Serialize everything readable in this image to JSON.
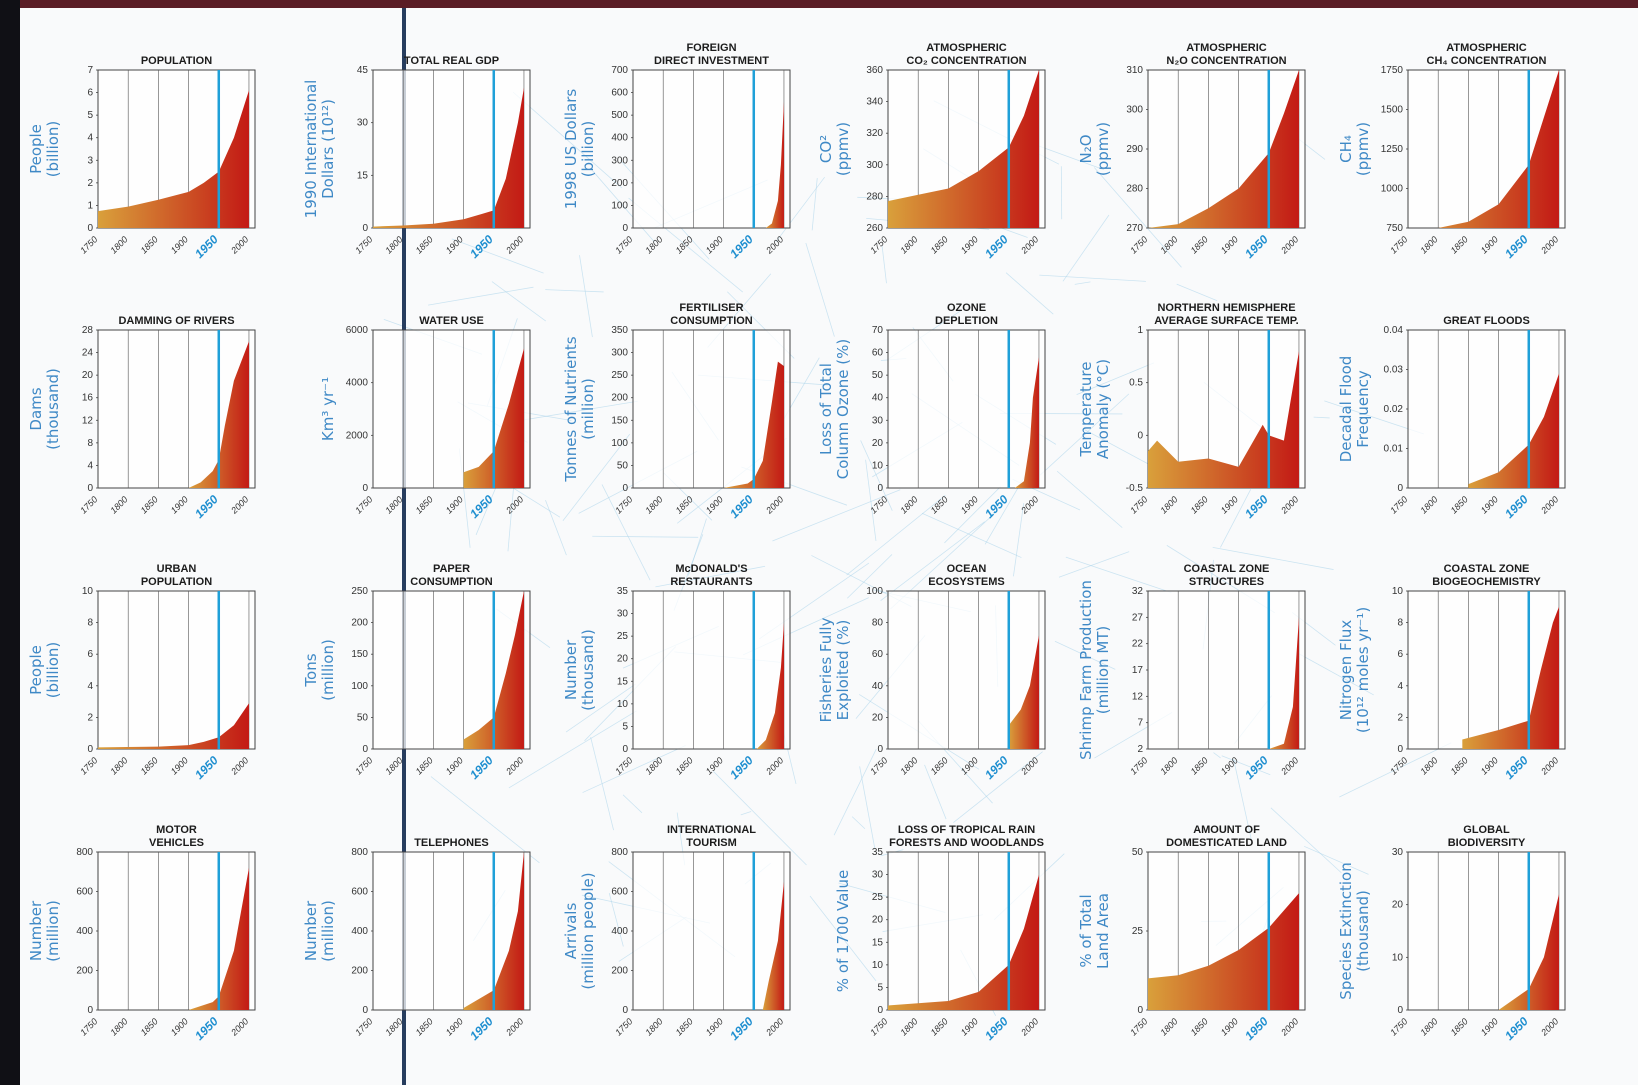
{
  "charts": [
    {
      "id": "population",
      "title": [
        "POPULATION"
      ],
      "ylabel": [
        "People",
        "(billion)"
      ],
      "yticks": [
        "0",
        "1",
        "2",
        "3",
        "4",
        "5",
        "6",
        "7"
      ],
      "ylim": [
        0,
        7
      ],
      "xticks": [
        "1750",
        "1800",
        "1850",
        "1900",
        "1950",
        "2000"
      ],
      "highlight_x": "1950",
      "series": [
        [
          1750,
          0.75
        ],
        [
          1800,
          0.95
        ],
        [
          1850,
          1.25
        ],
        [
          1900,
          1.6
        ],
        [
          1925,
          2.0
        ],
        [
          1950,
          2.5
        ],
        [
          1975,
          4.0
        ],
        [
          2000,
          6.1
        ]
      ]
    },
    {
      "id": "real-gdp",
      "title": [
        "TOTAL REAL GDP"
      ],
      "ylabel": [
        "1990 International",
        "Dollars (10¹²)"
      ],
      "yticks": [
        "0",
        "15",
        "30",
        "45"
      ],
      "ylim": [
        0,
        45
      ],
      "xticks": [
        "1750",
        "1800",
        "1850",
        "1900",
        "1950",
        "2000"
      ],
      "highlight_x": "1950",
      "series": [
        [
          1750,
          0.4
        ],
        [
          1800,
          0.7
        ],
        [
          1850,
          1.2
        ],
        [
          1900,
          2.5
        ],
        [
          1930,
          4
        ],
        [
          1950,
          5
        ],
        [
          1970,
          14
        ],
        [
          1990,
          30
        ],
        [
          2000,
          40
        ]
      ]
    },
    {
      "id": "foreign-investment",
      "title": [
        "FOREIGN",
        "DIRECT INVESTMENT"
      ],
      "ylabel": [
        "1998 US Dollars",
        "(billion)"
      ],
      "yticks": [
        "0",
        "100",
        "200",
        "300",
        "400",
        "500",
        "600",
        "700"
      ],
      "ylim": [
        0,
        700
      ],
      "xticks": [
        "1750",
        "1800",
        "1850",
        "1900",
        "1950",
        "2000"
      ],
      "highlight_x": "1950",
      "series": [
        [
          1970,
          0
        ],
        [
          1980,
          20
        ],
        [
          1990,
          120
        ],
        [
          1995,
          280
        ],
        [
          2000,
          560
        ]
      ]
    },
    {
      "id": "co2",
      "title": [
        "ATMOSPHERIC",
        "CO₂ CONCENTRATION"
      ],
      "ylabel": [
        "CO²",
        "(ppmv)"
      ],
      "yticks": [
        "260",
        "280",
        "300",
        "320",
        "340",
        "360"
      ],
      "ylim": [
        260,
        360
      ],
      "xticks": [
        "1750",
        "1800",
        "1850",
        "1900",
        "1950",
        "2000"
      ],
      "highlight_x": "1950",
      "series": [
        [
          1750,
          277
        ],
        [
          1800,
          281
        ],
        [
          1850,
          285
        ],
        [
          1900,
          296
        ],
        [
          1950,
          311
        ],
        [
          1975,
          331
        ],
        [
          2000,
          369
        ]
      ]
    },
    {
      "id": "n2o",
      "title": [
        "ATMOSPHERIC",
        "N₂O CONCENTRATION"
      ],
      "ylabel": [
        "N₂O",
        "(ppmv)"
      ],
      "yticks": [
        "270",
        "280",
        "290",
        "300",
        "310"
      ],
      "ylim": [
        270,
        310
      ],
      "xticks": [
        "1750",
        "1800",
        "1850",
        "1900",
        "1950",
        "2000"
      ],
      "highlight_x": "1950",
      "series": [
        [
          1750,
          270
        ],
        [
          1800,
          271
        ],
        [
          1850,
          275
        ],
        [
          1900,
          280
        ],
        [
          1950,
          289
        ],
        [
          1975,
          299
        ],
        [
          2000,
          316
        ]
      ]
    },
    {
      "id": "ch4",
      "title": [
        "ATMOSPHERIC",
        "CH₄ CONCENTRATION"
      ],
      "ylabel": [
        "CH₄",
        "(ppmv)"
      ],
      "yticks": [
        "750",
        "1000",
        "1250",
        "1500",
        "1750"
      ],
      "ylim": [
        750,
        1750
      ],
      "xticks": [
        "1750",
        "1800",
        "1850",
        "1900",
        "1950",
        "2000"
      ],
      "highlight_x": "1950",
      "series": [
        [
          1750,
          700
        ],
        [
          1800,
          715
        ],
        [
          1850,
          790
        ],
        [
          1900,
          900
        ],
        [
          1950,
          1150
        ],
        [
          1975,
          1450
        ],
        [
          2000,
          1750
        ]
      ]
    },
    {
      "id": "damming",
      "title": [
        "DAMMING OF RIVERS"
      ],
      "ylabel": [
        "Dams",
        "(thousand)"
      ],
      "yticks": [
        "0",
        "4",
        "8",
        "12",
        "16",
        "20",
        "24",
        "28"
      ],
      "ylim": [
        0,
        28
      ],
      "xticks": [
        "1750",
        "1800",
        "1850",
        "1900",
        "1950",
        "2000"
      ],
      "highlight_x": "1950",
      "series": [
        [
          1900,
          0
        ],
        [
          1920,
          1
        ],
        [
          1940,
          3
        ],
        [
          1950,
          5
        ],
        [
          1960,
          11
        ],
        [
          1975,
          19
        ],
        [
          2000,
          26
        ]
      ]
    },
    {
      "id": "water-use",
      "title": [
        "WATER USE"
      ],
      "ylabel": [
        "Km³ yr⁻¹"
      ],
      "yticks": [
        "0",
        "2000",
        "4000",
        "6000"
      ],
      "ylim": [
        0,
        6000
      ],
      "xticks": [
        "1750",
        "1800",
        "1850",
        "1900",
        "1950",
        "2000"
      ],
      "highlight_x": "1950",
      "series": [
        [
          1900,
          600
        ],
        [
          1925,
          800
        ],
        [
          1950,
          1400
        ],
        [
          1975,
          3200
        ],
        [
          2000,
          5300
        ]
      ]
    },
    {
      "id": "fertiliser",
      "title": [
        "FERTILISER",
        "CONSUMPTION"
      ],
      "ylabel": [
        "Tonnes of Nutrients",
        "(million)"
      ],
      "yticks": [
        "0",
        "50",
        "100",
        "150",
        "200",
        "250",
        "300",
        "350"
      ],
      "ylim": [
        0,
        350
      ],
      "xticks": [
        "1750",
        "1800",
        "1850",
        "1900",
        "1950",
        "2000"
      ],
      "highlight_x": "1950",
      "series": [
        [
          1900,
          0
        ],
        [
          1940,
          10
        ],
        [
          1950,
          20
        ],
        [
          1965,
          60
        ],
        [
          1980,
          190
        ],
        [
          1990,
          280
        ],
        [
          2000,
          270
        ]
      ]
    },
    {
      "id": "ozone",
      "title": [
        "OZONE",
        "DEPLETION"
      ],
      "ylabel": [
        "Loss of Total",
        "Column Ozone (%)"
      ],
      "yticks": [
        "0",
        "10",
        "20",
        "30",
        "40",
        "50",
        "60",
        "70"
      ],
      "ylim": [
        0,
        70
      ],
      "xticks": [
        "1750",
        "1800",
        "1850",
        "1900",
        "1950",
        "2000"
      ],
      "highlight_x": "1950",
      "series": [
        [
          1960,
          0
        ],
        [
          1975,
          3
        ],
        [
          1985,
          20
        ],
        [
          1990,
          40
        ],
        [
          2000,
          58
        ]
      ]
    },
    {
      "id": "nh-temp",
      "title": [
        "NORTHERN HEMISPHERE",
        "AVERAGE SURFACE TEMP."
      ],
      "ylabel": [
        "Temperature",
        "Anomaly (°C)"
      ],
      "yticks": [
        "-0.5",
        "0",
        "0.5",
        "1"
      ],
      "ylim": [
        -0.5,
        1
      ],
      "xticks": [
        "1750",
        "1800",
        "1850",
        "1900",
        "1950",
        "2000"
      ],
      "highlight_x": "1950",
      "series": [
        [
          1750,
          -0.15
        ],
        [
          1765,
          -0.05
        ],
        [
          1800,
          -0.25
        ],
        [
          1850,
          -0.22
        ],
        [
          1900,
          -0.3
        ],
        [
          1940,
          0.1
        ],
        [
          1950,
          0.0
        ],
        [
          1975,
          -0.05
        ],
        [
          2000,
          0.8
        ]
      ]
    },
    {
      "id": "floods",
      "title": [
        "GREAT FLOODS"
      ],
      "ylabel": [
        "Decadal Flood",
        "Frequency"
      ],
      "yticks": [
        "0",
        "0.01",
        "0.02",
        "0.03",
        "0.04"
      ],
      "ylim": [
        0,
        0.04
      ],
      "xticks": [
        "1750",
        "1800",
        "1850",
        "1900",
        "1950",
        "2000"
      ],
      "highlight_x": "1950",
      "series": [
        [
          1850,
          0.001
        ],
        [
          1900,
          0.004
        ],
        [
          1950,
          0.011
        ],
        [
          1975,
          0.018
        ],
        [
          2000,
          0.029
        ]
      ]
    },
    {
      "id": "urban-pop",
      "title": [
        "URBAN",
        "POPULATION"
      ],
      "ylabel": [
        "People",
        "(billion)"
      ],
      "yticks": [
        "0",
        "2",
        "4",
        "6",
        "8",
        "10"
      ],
      "ylim": [
        0,
        10
      ],
      "xticks": [
        "1750",
        "1800",
        "1850",
        "1900",
        "1950",
        "2000"
      ],
      "highlight_x": "1950",
      "series": [
        [
          1750,
          0.1
        ],
        [
          1850,
          0.15
        ],
        [
          1900,
          0.25
        ],
        [
          1925,
          0.45
        ],
        [
          1950,
          0.75
        ],
        [
          1975,
          1.5
        ],
        [
          2000,
          2.9
        ]
      ]
    },
    {
      "id": "paper",
      "title": [
        "PAPER",
        "CONSUMPTION"
      ],
      "ylabel": [
        "Tons",
        "(million)"
      ],
      "yticks": [
        "0",
        "50",
        "100",
        "150",
        "200",
        "250"
      ],
      "ylim": [
        0,
        250
      ],
      "xticks": [
        "1750",
        "1800",
        "1850",
        "1900",
        "1950",
        "2000"
      ],
      "highlight_x": "1950",
      "series": [
        [
          1900,
          15
        ],
        [
          1925,
          30
        ],
        [
          1950,
          50
        ],
        [
          1970,
          120
        ],
        [
          1985,
          180
        ],
        [
          2000,
          250
        ]
      ]
    },
    {
      "id": "mcdonalds",
      "title": [
        "McDONALD'S",
        "RESTAURANTS"
      ],
      "ylabel": [
        "Number",
        "(thousand)"
      ],
      "yticks": [
        "0",
        "5",
        "10",
        "15",
        "20",
        "25",
        "30",
        "35"
      ],
      "ylim": [
        0,
        35
      ],
      "xticks": [
        "1750",
        "1800",
        "1850",
        "1900",
        "1950",
        "2000"
      ],
      "highlight_x": "1950",
      "series": [
        [
          1955,
          0
        ],
        [
          1970,
          2
        ],
        [
          1985,
          8
        ],
        [
          1995,
          18
        ],
        [
          2000,
          28
        ]
      ]
    },
    {
      "id": "ocean",
      "title": [
        "OCEAN",
        "ECOSYSTEMS"
      ],
      "ylabel": [
        "Fisheries Fully",
        "Exploited (%)"
      ],
      "yticks": [
        "0",
        "20",
        "40",
        "60",
        "80",
        "100"
      ],
      "ylim": [
        0,
        100
      ],
      "xticks": [
        "1750",
        "1800",
        "1850",
        "1900",
        "1950",
        "2000"
      ],
      "highlight_x": "1950",
      "series": [
        [
          1950,
          15
        ],
        [
          1970,
          25
        ],
        [
          1985,
          40
        ],
        [
          2000,
          72
        ]
      ]
    },
    {
      "id": "shrimp",
      "title": [
        "COASTAL ZONE",
        "STRUCTURES"
      ],
      "ylabel": [
        "Shrimp Farm Production",
        "(million MT)"
      ],
      "yticks": [
        "2",
        "7",
        "12",
        "17",
        "22",
        "27",
        "32"
      ],
      "ylim": [
        2,
        32
      ],
      "xticks": [
        "1750",
        "1800",
        "1850",
        "1900",
        "1950",
        "2000"
      ],
      "highlight_x": "1950",
      "series": [
        [
          1950,
          2
        ],
        [
          1975,
          3
        ],
        [
          1990,
          10
        ],
        [
          2000,
          27
        ]
      ]
    },
    {
      "id": "biogeochem",
      "title": [
        "COASTAL ZONE",
        "BIOGEOCHEMISTRY"
      ],
      "ylabel": [
        "Nitrogen Flux",
        "(10¹² moles yr⁻¹)"
      ],
      "yticks": [
        "0",
        "2",
        "4",
        "6",
        "8",
        "10"
      ],
      "ylim": [
        0,
        10
      ],
      "xticks": [
        "1750",
        "1800",
        "1850",
        "1900",
        "1950",
        "2000"
      ],
      "highlight_x": "1950",
      "series": [
        [
          1840,
          0.6
        ],
        [
          1900,
          1.2
        ],
        [
          1950,
          1.8
        ],
        [
          1970,
          5
        ],
        [
          1990,
          8
        ],
        [
          2000,
          9
        ]
      ]
    },
    {
      "id": "motor-vehicles",
      "title": [
        "MOTOR",
        "VEHICLES"
      ],
      "ylabel": [
        "Number",
        "(million)"
      ],
      "yticks": [
        "0",
        "200",
        "400",
        "600",
        "800"
      ],
      "ylim": [
        0,
        800
      ],
      "xticks": [
        "1750",
        "1800",
        "1850",
        "1900",
        "1950",
        "2000"
      ],
      "highlight_x": "1950",
      "series": [
        [
          1900,
          0
        ],
        [
          1940,
          40
        ],
        [
          1950,
          70
        ],
        [
          1975,
          300
        ],
        [
          2000,
          720
        ]
      ]
    },
    {
      "id": "telephones",
      "title": [
        "TELEPHONES"
      ],
      "ylabel": [
        "Number",
        "(million)"
      ],
      "yticks": [
        "0",
        "200",
        "400",
        "600",
        "800"
      ],
      "ylim": [
        0,
        800
      ],
      "xticks": [
        "1750",
        "1800",
        "1850",
        "1900",
        "1950",
        "2000"
      ],
      "highlight_x": "1950",
      "series": [
        [
          1900,
          10
        ],
        [
          1950,
          100
        ],
        [
          1975,
          300
        ],
        [
          1990,
          500
        ],
        [
          2000,
          800
        ]
      ]
    },
    {
      "id": "tourism",
      "title": [
        "INTERNATIONAL",
        "TOURISM"
      ],
      "ylabel": [
        "Arrivals",
        "(million people)"
      ],
      "yticks": [
        "0",
        "200",
        "400",
        "600",
        "800"
      ],
      "ylim": [
        0,
        800
      ],
      "xticks": [
        "1750",
        "1800",
        "1850",
        "1900",
        "1950",
        "2000"
      ],
      "highlight_x": "1950",
      "series": [
        [
          1965,
          0
        ],
        [
          1975,
          150
        ],
        [
          1990,
          350
        ],
        [
          2000,
          650
        ]
      ]
    },
    {
      "id": "rainforest",
      "title": [
        "LOSS OF TROPICAL RAIN",
        "FORESTS AND WOODLANDS"
      ],
      "ylabel": [
        "% of 1700 Value"
      ],
      "yticks": [
        "0",
        "5",
        "10",
        "15",
        "20",
        "25",
        "30",
        "35"
      ],
      "ylim": [
        0,
        35
      ],
      "xticks": [
        "1750",
        "1800",
        "1850",
        "1900",
        "1950",
        "2000"
      ],
      "highlight_x": "1950",
      "series": [
        [
          1750,
          1
        ],
        [
          1850,
          2
        ],
        [
          1900,
          4
        ],
        [
          1950,
          10
        ],
        [
          1975,
          18
        ],
        [
          2000,
          30
        ]
      ]
    },
    {
      "id": "domesticated",
      "title": [
        "AMOUNT OF",
        "DOMESTICATED LAND"
      ],
      "ylabel": [
        "% of Total",
        "Land Area"
      ],
      "yticks": [
        "0",
        "25",
        "50"
      ],
      "ylim": [
        0,
        50
      ],
      "xticks": [
        "1750",
        "1800",
        "1850",
        "1900",
        "1950",
        "2000"
      ],
      "highlight_x": "1950",
      "series": [
        [
          1750,
          10
        ],
        [
          1800,
          11
        ],
        [
          1850,
          14
        ],
        [
          1900,
          19
        ],
        [
          1950,
          26
        ],
        [
          2000,
          37
        ]
      ]
    },
    {
      "id": "biodiversity",
      "title": [
        "GLOBAL",
        "BIODIVERSITY"
      ],
      "ylabel": [
        "Species Extinction",
        "(thousand)"
      ],
      "yticks": [
        "0",
        "10",
        "20",
        "30"
      ],
      "ylim": [
        0,
        30
      ],
      "xticks": [
        "1750",
        "1800",
        "1850",
        "1900",
        "1950",
        "2000"
      ],
      "highlight_x": "1950",
      "series": [
        [
          1900,
          0
        ],
        [
          1950,
          4
        ],
        [
          1975,
          10
        ],
        [
          2000,
          22
        ]
      ]
    }
  ],
  "colors": {
    "fill_left": "#d9a03b",
    "fill_right": "#c31a15",
    "highlight": "#1fa0d8",
    "ylabel": "#3f89c6",
    "grid": "#555555"
  }
}
